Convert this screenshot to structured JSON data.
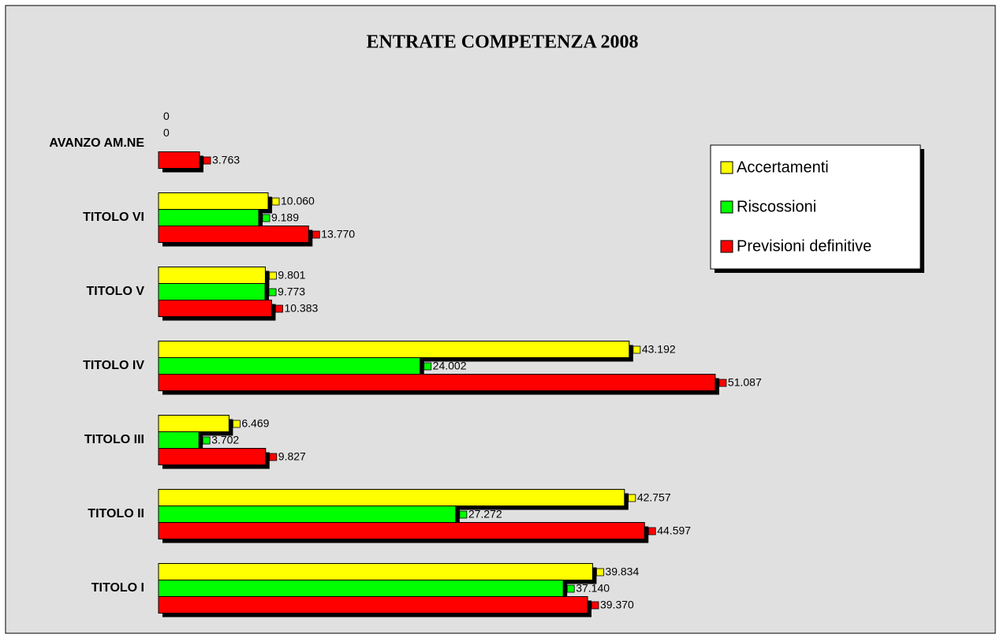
{
  "chart_data": {
    "type": "hbar",
    "title": "ENTRATE COMPETENZA 2008",
    "categories": [
      "AVANZO AM.NE",
      "TITOLO VI",
      "TITOLO V",
      "TITOLO IV",
      "TITOLO III",
      "TITOLO II",
      "TITOLO I"
    ],
    "series": [
      {
        "name": "Accertamenti",
        "color": "#ffff00",
        "values": [
          0,
          10060,
          9801,
          43192,
          6469,
          42757,
          39834
        ],
        "value_labels": [
          "0",
          "10.060",
          "9.801",
          "43.192",
          "6.469",
          "42.757",
          "39.834"
        ]
      },
      {
        "name": "Riscossioni",
        "color": "#00ff00",
        "values": [
          0,
          9189,
          9773,
          24002,
          3702,
          27272,
          37140
        ],
        "value_labels": [
          "0",
          "9.189",
          "9.773",
          "24.002",
          "3.702",
          "27.272",
          "37.140"
        ]
      },
      {
        "name": "Previsioni definitive",
        "color": "#ff0000",
        "values": [
          3763,
          13770,
          10383,
          51087,
          9827,
          44597,
          39370
        ],
        "value_labels": [
          "3.763",
          "13.770",
          "10.383",
          "51.087",
          "9.827",
          "44.597",
          "39.370"
        ]
      }
    ],
    "xlim": [
      0,
      77000
    ],
    "legend": "right"
  }
}
